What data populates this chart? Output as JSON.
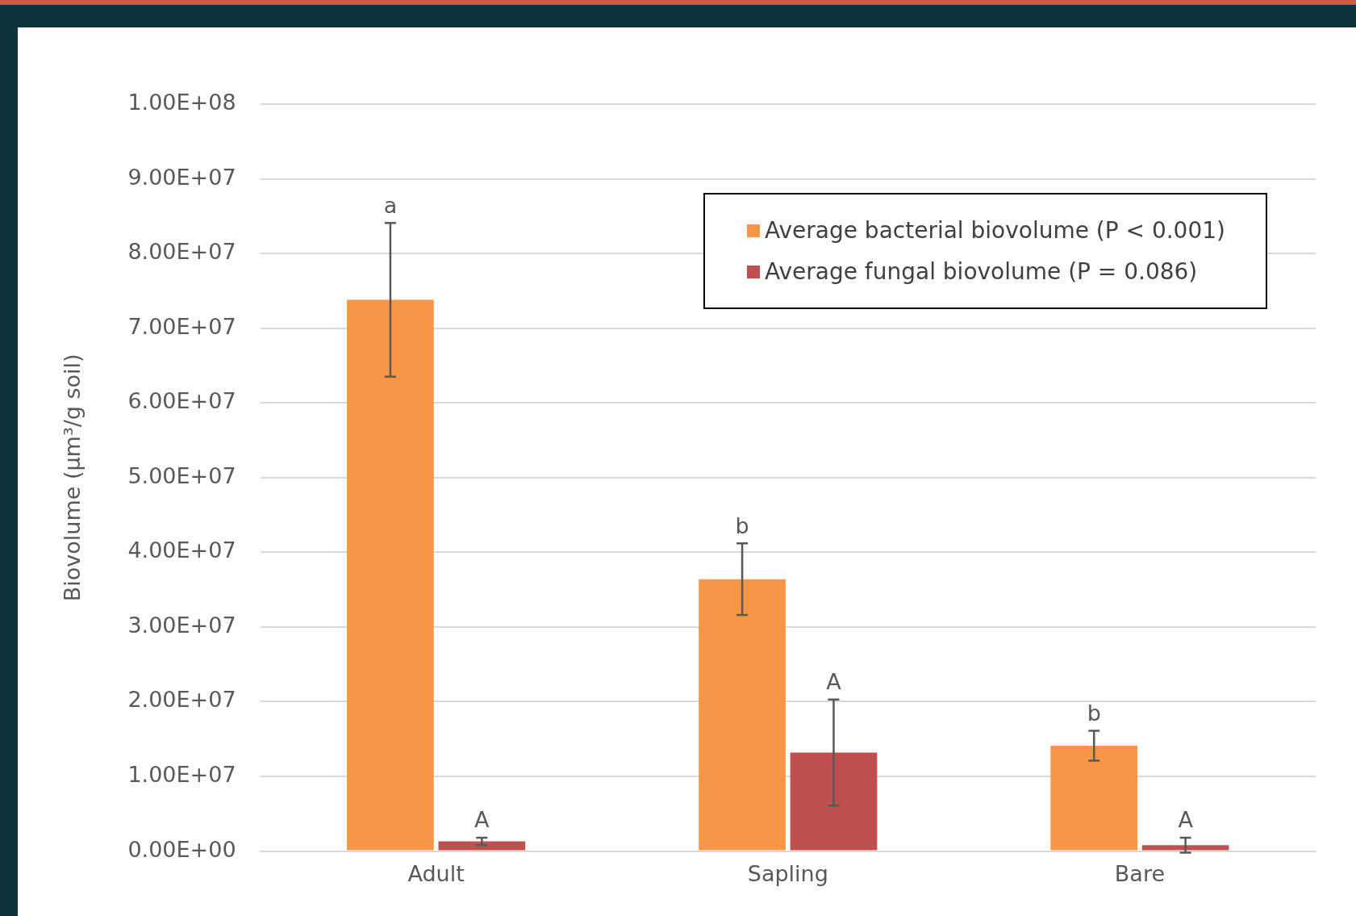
{
  "chart_data": {
    "type": "bar",
    "ylabel": "Biovolume (µm³/g soil)",
    "categories": [
      "Adult",
      "Sapling",
      "Bare"
    ],
    "series": [
      {
        "name": "Average bacterial biovolume (P < 0.001)",
        "color": "#f79646",
        "values": [
          73800000,
          36400000,
          14100000
        ],
        "errors": [
          10300000,
          4800000,
          2000000
        ]
      },
      {
        "name": "Average fungal biovolume (P = 0.086)",
        "color": "#c0504d",
        "values": [
          1300000,
          13200000,
          800000
        ],
        "errors": [
          500000,
          7100000,
          1000000
        ]
      }
    ],
    "ylim": [
      0,
      100000000
    ],
    "yticks": [
      {
        "value": 0,
        "label": "0.00E+00"
      },
      {
        "value": 10000000,
        "label": "1.00E+07"
      },
      {
        "value": 20000000,
        "label": "2.00E+07"
      },
      {
        "value": 30000000,
        "label": "3.00E+07"
      },
      {
        "value": 40000000,
        "label": "4.00E+07"
      },
      {
        "value": 50000000,
        "label": "5.00E+07"
      },
      {
        "value": 60000000,
        "label": "6.00E+07"
      },
      {
        "value": 70000000,
        "label": "7.00E+07"
      },
      {
        "value": 80000000,
        "label": "8.00E+07"
      },
      {
        "value": 90000000,
        "label": "9.00E+07"
      },
      {
        "value": 100000000,
        "label": "1.00E+08"
      }
    ],
    "grid": "y",
    "legend": "top right",
    "annotations": [
      "a",
      "A",
      "b",
      "A",
      "b",
      "A"
    ]
  }
}
